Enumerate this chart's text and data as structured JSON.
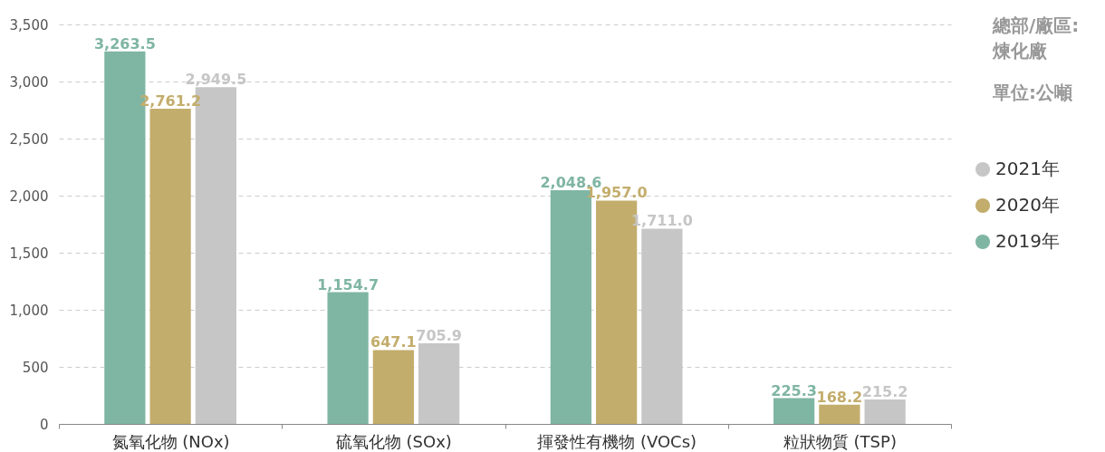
{
  "chart_data": {
    "type": "bar",
    "categories": [
      "氮氧化物 (NOx)",
      "硫氧化物 (SOx)",
      "揮發性有機物 (VOCs)",
      "粒狀物質 (TSP)"
    ],
    "series": [
      {
        "name": "2019年",
        "color": "#7fb5a3",
        "values": [
          3263.5,
          1154.7,
          2048.6,
          225.3
        ],
        "value_labels": [
          "3,263.5",
          "1,154.7",
          "2,048.6",
          "225.3"
        ]
      },
      {
        "name": "2020年",
        "color": "#c3ad6c",
        "values": [
          2761.2,
          647.1,
          1957.0,
          168.2
        ],
        "value_labels": [
          "2,761.2",
          "647.1",
          "1,957.0",
          "168.2"
        ]
      },
      {
        "name": "2021年",
        "color": "#c6c6c6",
        "values": [
          2949.5,
          705.9,
          1711.0,
          215.2
        ],
        "value_labels": [
          "2,949.5",
          "705.9",
          "1,711.0",
          "215.2"
        ]
      }
    ],
    "ylim": [
      0,
      3500
    ],
    "yticks": [
      0,
      {
        "value": 500,
        "label": "500"
      },
      {
        "value": 1000,
        "label": "1,000"
      },
      {
        "value": 1500,
        "label": "1,500"
      },
      {
        "value": 2000,
        "label": "2,000"
      },
      {
        "value": 2500,
        "label": "2,500"
      },
      {
        "value": 3000,
        "label": "3,000"
      },
      {
        "value": 3500,
        "label": "3,500"
      }
    ],
    "grid": "y",
    "legend": "right",
    "annotations": [
      "總部/廠區:\n煉化廠",
      "單位:公噸"
    ]
  }
}
